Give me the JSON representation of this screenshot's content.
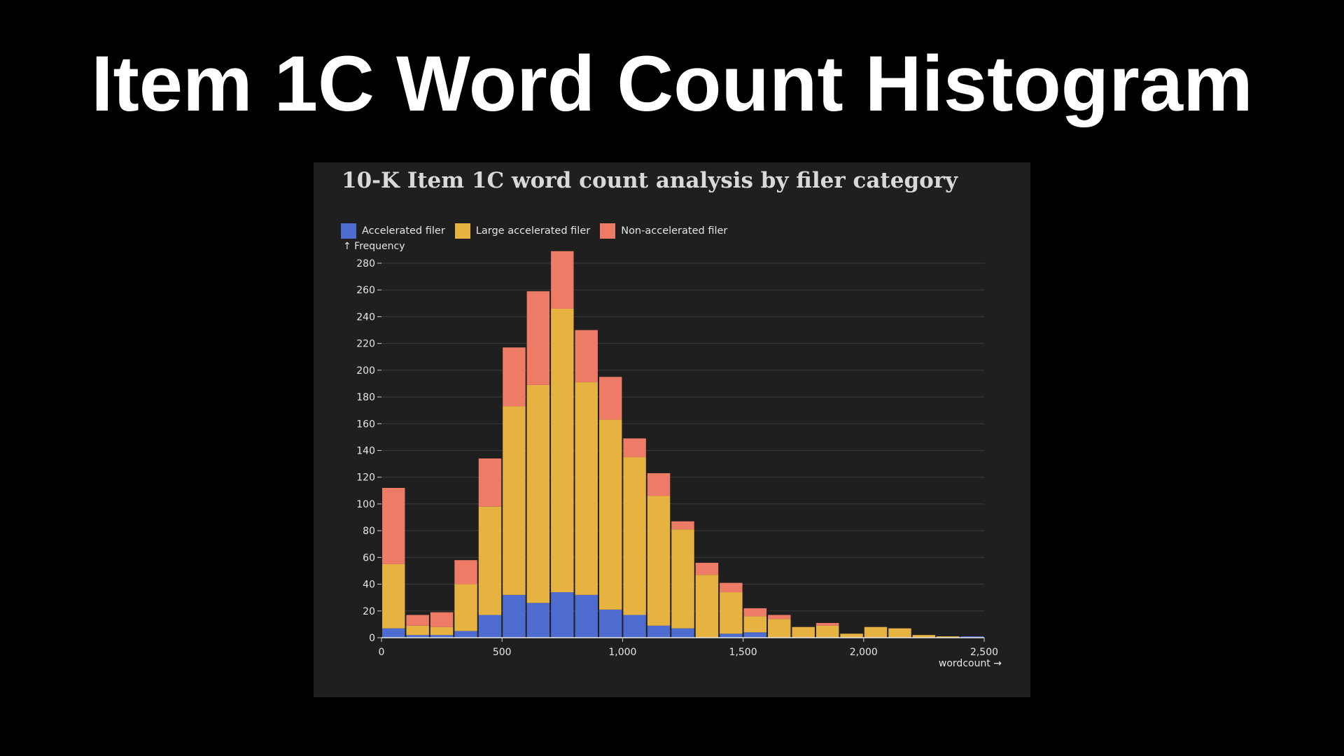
{
  "slide": {
    "title": "Item 1C Word Count Histogram"
  },
  "chart_data": {
    "type": "bar",
    "stacked": true,
    "title": "10-K Item 1C word count analysis by filer category",
    "xlabel": "wordcount →",
    "ylabel": "↑ Frequency",
    "xlim": [
      0,
      2500
    ],
    "ylim": [
      0,
      280
    ],
    "bin_width": 100,
    "x_ticks": [
      0,
      500,
      1000,
      1500,
      2000,
      2500
    ],
    "x_tick_labels": [
      "0",
      "500",
      "1,000",
      "1,500",
      "2,000",
      "2,500"
    ],
    "y_ticks": [
      0,
      20,
      40,
      60,
      80,
      100,
      120,
      140,
      160,
      180,
      200,
      220,
      240,
      260,
      280
    ],
    "grid": true,
    "legend_position": "top-left",
    "bins": [
      0,
      100,
      200,
      300,
      400,
      500,
      600,
      700,
      800,
      900,
      1000,
      1100,
      1200,
      1300,
      1400,
      1500,
      1600,
      1700,
      1800,
      1900,
      2000,
      2100,
      2200,
      2300,
      2400
    ],
    "series": [
      {
        "name": "Accelerated filer",
        "color": "#4e6bcf",
        "values": [
          7,
          2,
          2,
          5,
          17,
          32,
          26,
          34,
          32,
          21,
          17,
          9,
          7,
          0,
          3,
          4,
          0,
          0,
          0,
          0,
          0,
          0,
          0,
          0,
          1
        ]
      },
      {
        "name": "Large accelerated filer",
        "color": "#e6b340",
        "values": [
          48,
          7,
          6,
          35,
          81,
          141,
          163,
          212,
          159,
          142,
          118,
          97,
          74,
          47,
          31,
          12,
          14,
          8,
          9,
          3,
          8,
          7,
          2,
          1,
          0
        ]
      },
      {
        "name": "Non-accelerated filer",
        "color": "#ed7b66",
        "values": [
          57,
          8,
          11,
          18,
          36,
          44,
          70,
          43,
          39,
          32,
          14,
          17,
          6,
          9,
          7,
          6,
          3,
          0,
          2,
          0,
          0,
          0,
          0,
          0,
          0
        ]
      }
    ]
  }
}
